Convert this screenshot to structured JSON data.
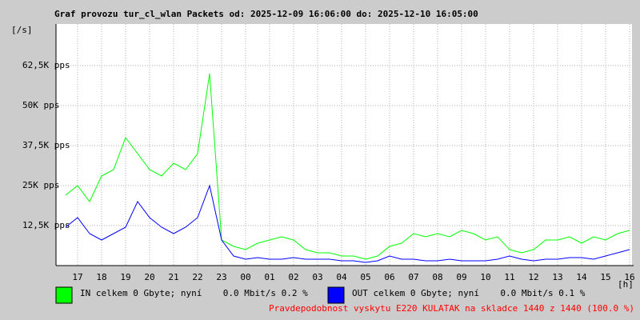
{
  "chart_data": {
    "type": "line",
    "title": "Graf provozu tur_cl_wlan Packets od: 2025-12-09 16:06:00 do: 2025-12-10 16:05:00",
    "ylabel": "[/s]",
    "xlabel": "[h]",
    "footer": "Pravdepodobnost vyskytu E220 KULATAK na skladce 1440 z 1440 (100.0 %)",
    "x": [
      0.5,
      1,
      1.5,
      2,
      2.5,
      3,
      3.5,
      4,
      4.5,
      5,
      5.5,
      6,
      6.5,
      7,
      7.5,
      8,
      8.5,
      9,
      9.5,
      10,
      10.5,
      11,
      11.5,
      12,
      12.5,
      13,
      13.5,
      14,
      14.5,
      15,
      15.5,
      16,
      16.5,
      17,
      17.5,
      18,
      18.5,
      19,
      19.5,
      20,
      20.5,
      21,
      21.5,
      22,
      22.5,
      23,
      23.5,
      24
    ],
    "series": [
      {
        "name": "IN celkem 0 Gbyte; nyní    0.0 Mbit/s 0.2 %",
        "color": "#00ff00",
        "values": [
          22000,
          25000,
          20000,
          28000,
          30000,
          40000,
          35000,
          30000,
          28000,
          32000,
          30000,
          35000,
          60000,
          8000,
          6000,
          5000,
          7000,
          8000,
          9000,
          8000,
          5000,
          4000,
          4000,
          3000,
          3000,
          2000,
          3000,
          6000,
          7000,
          10000,
          9000,
          10000,
          9000,
          11000,
          10000,
          8000,
          9000,
          5000,
          4000,
          5000,
          8000,
          8000,
          9000,
          7000,
          9000,
          8000,
          10000,
          11000
        ]
      },
      {
        "name": "OUT celkem 0 Gbyte; nyní    0.0 Mbit/s 0.1 %",
        "color": "#0000ff",
        "values": [
          12000,
          15000,
          10000,
          8000,
          10000,
          12000,
          20000,
          15000,
          12000,
          10000,
          12000,
          15000,
          25000,
          8000,
          3000,
          2000,
          2500,
          2000,
          2000,
          2500,
          2000,
          2000,
          2000,
          1500,
          1500,
          1000,
          1500,
          3000,
          2000,
          2000,
          1500,
          1500,
          2000,
          1500,
          1500,
          1500,
          2000,
          3000,
          2000,
          1500,
          2000,
          2000,
          2500,
          2500,
          2000,
          3000,
          4000,
          5000
        ]
      }
    ],
    "xlim": [
      0.1,
      24.1
    ],
    "xticks": [
      {
        "value": 1,
        "label": "17"
      },
      {
        "value": 2,
        "label": "18"
      },
      {
        "value": 3,
        "label": "19"
      },
      {
        "value": 4,
        "label": "20"
      },
      {
        "value": 5,
        "label": "21"
      },
      {
        "value": 6,
        "label": "22"
      },
      {
        "value": 7,
        "label": "23"
      },
      {
        "value": 8,
        "label": "00"
      },
      {
        "value": 9,
        "label": "01"
      },
      {
        "value": 10,
        "label": "02"
      },
      {
        "value": 11,
        "label": "03"
      },
      {
        "value": 12,
        "label": "04"
      },
      {
        "value": 13,
        "label": "05"
      },
      {
        "value": 14,
        "label": "06"
      },
      {
        "value": 15,
        "label": "07"
      },
      {
        "value": 16,
        "label": "08"
      },
      {
        "value": 17,
        "label": "09"
      },
      {
        "value": 18,
        "label": "10"
      },
      {
        "value": 19,
        "label": "11"
      },
      {
        "value": 20,
        "label": "12"
      },
      {
        "value": 21,
        "label": "13"
      },
      {
        "value": 22,
        "label": "14"
      },
      {
        "value": 23,
        "label": "15"
      },
      {
        "value": 24,
        "label": "16"
      }
    ],
    "ylim": [
      0,
      75500
    ],
    "yticks": [
      {
        "value": 12500,
        "label": "12,5K pps"
      },
      {
        "value": 25000,
        "label": "25K pps"
      },
      {
        "value": 37500,
        "label": "37,5K pps"
      },
      {
        "value": 50000,
        "label": "50K pps"
      },
      {
        "value": 62500,
        "label": "62,5K pps"
      }
    ],
    "grid": true
  }
}
